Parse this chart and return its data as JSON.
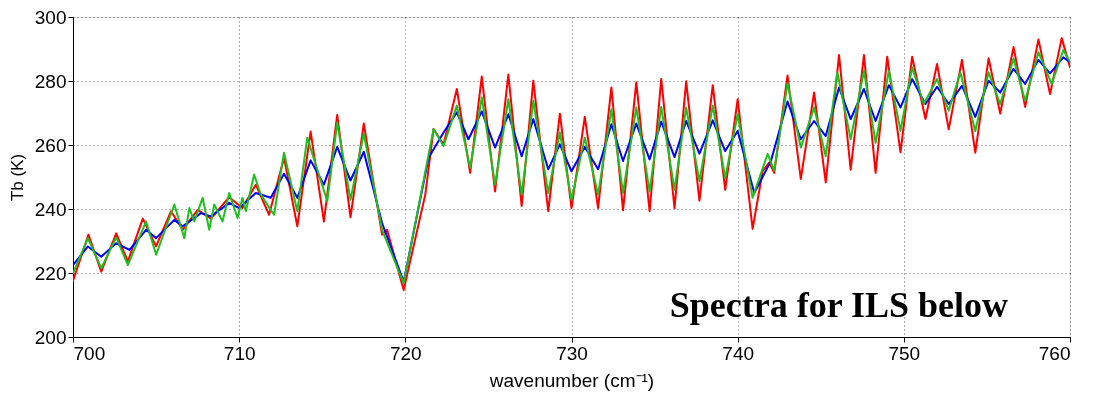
{
  "chart_data": {
    "type": "line",
    "xlabel": "wavenumber (cm⁻¹)",
    "ylabel": "Tb (K)",
    "xlim": [
      700,
      760
    ],
    "xticks": [
      700,
      710,
      720,
      730,
      740,
      750,
      760
    ],
    "ylim": [
      200,
      300
    ],
    "yticks": [
      200,
      220,
      240,
      260,
      280,
      300
    ],
    "grid": true,
    "line_style": "solid",
    "marker": "none",
    "annotations": [
      "Spectra for ILS below"
    ],
    "series": [
      {
        "color": "#ff0000",
        "x": [
          700,
          700.93,
          701.7,
          702.6,
          703.3,
          704.2,
          705.0,
          705.9,
          706.6,
          707.5,
          708.3,
          709.4,
          710.2,
          711.0,
          711.8,
          712.7,
          713.5,
          714.3,
          715.1,
          715.9,
          716.7,
          717.5,
          718.6,
          718.9,
          719.9,
          721.2,
          721.7,
          722.3,
          723.1,
          723.9,
          724.6,
          725.4,
          726.2,
          727.0,
          727.7,
          728.6,
          729.3,
          730.0,
          730.8,
          731.6,
          732.4,
          733.1,
          733.9,
          734.7,
          735.4,
          736.2,
          736.9,
          737.7,
          738.5,
          739.25,
          740,
          740.9,
          741.5,
          741.9,
          742.2,
          743.0,
          743.8,
          744.6,
          745.3,
          746.1,
          746.8,
          747.6,
          748.3,
          749.0,
          749.8,
          750.5,
          751.3,
          752.0,
          752.7,
          753.5,
          754.3,
          755.1,
          755.8,
          756.6,
          757.3,
          758.1,
          758.8,
          759.5,
          760
        ],
        "values": [
          217.5,
          232,
          220.4,
          232.4,
          223.6,
          237,
          228.3,
          239.3,
          233.5,
          239.7,
          237,
          243.7,
          240.3,
          247.6,
          238.2,
          256,
          234.6,
          264.2,
          236.1,
          269.4,
          237.4,
          266.7,
          232,
          233.5,
          214.7,
          244.5,
          265,
          260.2,
          277.5,
          251.3,
          281.4,
          245.5,
          282,
          241,
          280.1,
          239.3,
          269.8,
          240.3,
          268.8,
          240.3,
          278,
          239.6,
          279.6,
          239.3,
          280.6,
          240.3,
          279.9,
          242.6,
          278.7,
          246,
          274.3,
          233.8,
          251.8,
          254.5,
          251.3,
          281.7,
          249.4,
          276.4,
          248.3,
          288.1,
          252.3,
          288.1,
          251.3,
          287.6,
          257.7,
          287.6,
          268.1,
          285.3,
          264.9,
          286.6,
          257.6,
          287.1,
          269.8,
          290.6,
          271.9,
          293,
          275.9,
          293.4,
          284.3
        ]
      },
      {
        "color": "#0000ff",
        "x": [
          700,
          700.9,
          701.7,
          702.6,
          703.4,
          704.4,
          705.0,
          706.1,
          706.6,
          707.7,
          708.3,
          709.4,
          710.0,
          711.0,
          711.9,
          712.7,
          713.5,
          714.3,
          715.1,
          715.9,
          716.7,
          717.5,
          718.6,
          719.9,
          721.4,
          722.3,
          723.1,
          723.8,
          724.6,
          725.4,
          726.2,
          727.0,
          727.7,
          728.6,
          729.3,
          730.0,
          730.8,
          731.6,
          732.4,
          733.1,
          733.9,
          734.7,
          735.4,
          736.2,
          736.9,
          737.7,
          738.5,
          739.25,
          740,
          741.0,
          742.0,
          743.0,
          743.8,
          744.6,
          745.3,
          746.1,
          746.8,
          747.6,
          748.3,
          749.1,
          749.8,
          750.5,
          751.3,
          752.0,
          752.7,
          753.5,
          754.3,
          755.1,
          755.8,
          756.6,
          757.3,
          758.1,
          758.8,
          759.6,
          760
        ],
        "values": [
          222.5,
          228.3,
          225.1,
          229.3,
          227.2,
          233.5,
          230.9,
          236.6,
          234.6,
          238.7,
          237.7,
          241.9,
          240.3,
          245,
          243.5,
          251,
          243.5,
          255.2,
          247.6,
          259.4,
          248.9,
          257.9,
          235.6,
          217.3,
          256,
          263.9,
          270.2,
          261.8,
          270.5,
          259.2,
          269.6,
          256.5,
          268.1,
          252.4,
          260.2,
          251.8,
          259.4,
          252.4,
          266.5,
          255,
          266.7,
          255.5,
          267.3,
          256.2,
          267.5,
          257.3,
          267.7,
          258.1,
          264.4,
          245,
          255,
          273.6,
          261.8,
          267.5,
          262.8,
          278,
          268.1,
          277.5,
          267.5,
          278.7,
          271.7,
          280.6,
          272.8,
          278.2,
          272.8,
          278.5,
          268.8,
          280.1,
          276.4,
          283.8,
          279.1,
          286.6,
          282.4,
          287.4,
          285.9
        ]
      },
      {
        "color": "#1fbf1f",
        "x": [
          700,
          700.9,
          701.7,
          702.6,
          703.3,
          704.4,
          705.0,
          706.1,
          706.7,
          707.0,
          707.3,
          707.8,
          708.2,
          708.5,
          709.0,
          709.4,
          709.9,
          710.2,
          710.4,
          710.9,
          711.3,
          712.1,
          712.7,
          713.5,
          714.1,
          715.3,
          715.9,
          716.7,
          717.5,
          718.6,
          719.9,
          721.7,
          722.3,
          723.1,
          723.9,
          724.6,
          725.4,
          726.2,
          727.0,
          727.7,
          728.6,
          729.3,
          730.0,
          730.8,
          731.6,
          732.4,
          733.1,
          733.9,
          734.7,
          735.4,
          736.2,
          736.9,
          737.7,
          738.5,
          739.25,
          740,
          740.9,
          741.8,
          742.2,
          743.0,
          743.8,
          744.6,
          745.3,
          746.0,
          746.8,
          747.6,
          748.3,
          749.1,
          749.8,
          750.5,
          751.2,
          752.0,
          752.7,
          753.4,
          754.3,
          755.1,
          755.8,
          756.6,
          757.3,
          758.1,
          758.9,
          759.6,
          760
        ],
        "values": [
          219.9,
          230.9,
          221.5,
          231.1,
          222.5,
          236.1,
          225.7,
          241.4,
          230.9,
          240.3,
          236.1,
          243.5,
          233.5,
          241.4,
          236.1,
          245,
          237.2,
          243.5,
          239.3,
          250.8,
          244.5,
          238.2,
          257.6,
          239.3,
          262.3,
          242.4,
          267,
          242.9,
          263.6,
          233.5,
          216.8,
          265,
          259.7,
          272.3,
          252.9,
          274.9,
          247.6,
          274.3,
          244.5,
          273.8,
          245,
          263.9,
          242.9,
          262.3,
          244.5,
          271.2,
          245,
          271.7,
          245.5,
          271.9,
          246,
          271.7,
          248.7,
          272.3,
          249.7,
          269.6,
          243.5,
          257.2,
          252,
          279.3,
          259.2,
          271.7,
          256.5,
          282.7,
          261.8,
          283.2,
          260.7,
          283.2,
          264.4,
          284.3,
          272.8,
          280.6,
          270.7,
          282.7,
          264.4,
          282.7,
          272.8,
          287,
          273.8,
          289,
          279.1,
          289.7,
          285.9
        ]
      }
    ]
  }
}
